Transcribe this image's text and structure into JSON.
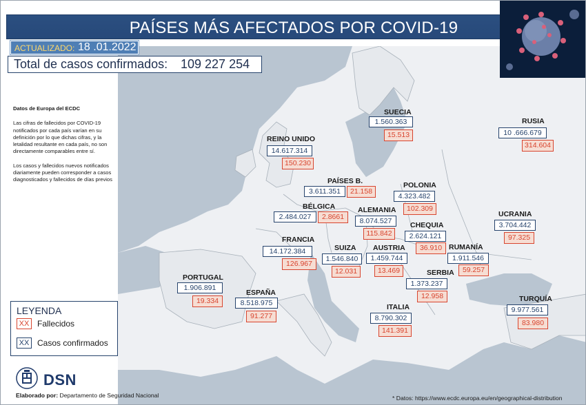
{
  "header": {
    "title": "PAÍSES MÁS AFECTADOS POR COVID-19",
    "updated_label": "ACTUALIZADO:",
    "updated_value": "18 .01.2022",
    "total_label": "Total de casos confirmados:",
    "total_value": "109 227 254"
  },
  "notes": {
    "title": "Datos de Europa del ECDC",
    "p1": "Las cifras de fallecidos por COVID-19 notificados por cada país varían en su definición por lo que dichas cifras, y la letalidad resultante en cada país, no son directamente comparables entre sí.",
    "p2": "Los casos y fallecidos nuevos notificados diariamente pueden corresponder a casos diagnosticados y fallecidos de días previos"
  },
  "legend": {
    "title": "LEYENDA",
    "swatch_text": "XX",
    "deaths_label": "Fallecidos",
    "cases_label": "Casos confirmados",
    "deaths_color": "#d8442e",
    "cases_color": "#25426b"
  },
  "footer": {
    "logo_text": "DSN",
    "elaborado_label": "Elaborado por:",
    "elaborado_value": "Departamento de Seguridad Nacional",
    "source": "* Datos: https://www.ecdc.europa.eu/en/geographical-distribution"
  },
  "countries": {
    "suecia": {
      "name": "SUECIA",
      "cases": "1.560.363",
      "deaths": "15.513"
    },
    "rusia": {
      "name": "RUSIA",
      "cases": "10 .666.679",
      "deaths": "314.604"
    },
    "reino_unido": {
      "name": "REINO UNIDO",
      "cases": "14.617.314",
      "deaths": "150.230"
    },
    "paises_bajos": {
      "name": "PAÍSES B.",
      "cases": "3.611.351",
      "deaths": "21.158"
    },
    "polonia": {
      "name": "POLONIA",
      "cases": "4.323.482",
      "deaths": "102.309"
    },
    "belgica": {
      "name": "BÉLGICA",
      "cases": "2.484.027",
      "deaths": "2.8661"
    },
    "alemania": {
      "name": "ALEMANIA",
      "cases": "8.074.527",
      "deaths": "115.842"
    },
    "chequia": {
      "name": "CHEQUIA",
      "cases": "2.624.121",
      "deaths": "36.910"
    },
    "ucrania": {
      "name": "UCRANIA",
      "cases": "3.704.442",
      "deaths": "97.325"
    },
    "francia": {
      "name": "FRANCIA",
      "cases": "14.172.384",
      "deaths": "126.967"
    },
    "suiza": {
      "name": "SUIZA",
      "cases": "1.546.840",
      "deaths": "12.031"
    },
    "austria": {
      "name": "AUSTRIA",
      "cases": "1.459.744",
      "deaths": "13.469"
    },
    "rumania": {
      "name": "RUMANÍA",
      "cases": "1.911.546",
      "deaths": "59.257"
    },
    "portugal": {
      "name": "PORTUGAL",
      "cases": "1.906.891",
      "deaths": "19.334"
    },
    "serbia": {
      "name": "SERBIA",
      "cases": "1.373.237",
      "deaths": "12.958"
    },
    "espana": {
      "name": "ESPAÑA",
      "cases": "8.518.975",
      "deaths": "91.277"
    },
    "italia": {
      "name": "ITALIA",
      "cases": "8.790.302",
      "deaths": "141.391"
    },
    "turquia": {
      "name": "TURQUÍA",
      "cases": "9.977.561",
      "deaths": "83.980"
    }
  }
}
